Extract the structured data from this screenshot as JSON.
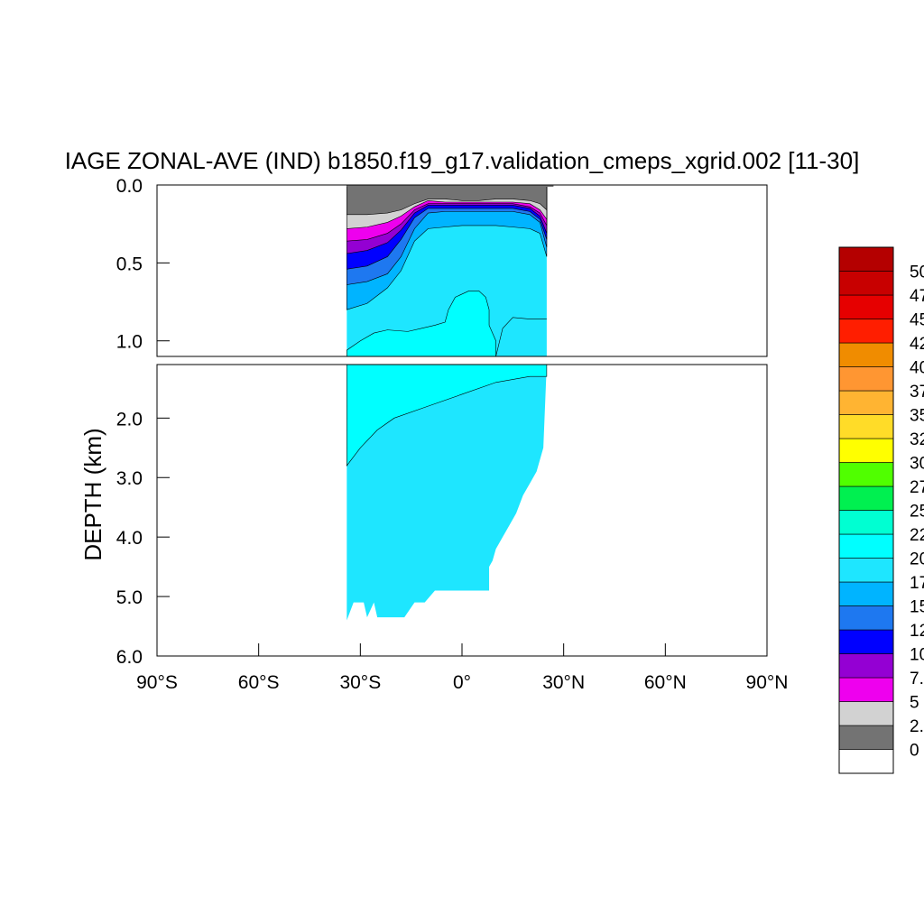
{
  "chart_data": {
    "type": "heatmap",
    "title": "IAGE ZONAL-AVE (IND) b1850.f19_g17.validation_cmeps_xgrid.002 [11-30]",
    "ylabel": "DEPTH (km)",
    "xlabel": "",
    "x_range": [
      -90,
      90
    ],
    "y_range_top_panel": [
      0.0,
      1.1
    ],
    "y_range_bottom_panel": [
      1.1,
      6.0
    ],
    "y_reversed": true,
    "x_ticks": [
      {
        "value": -90,
        "label": "90°S"
      },
      {
        "value": -60,
        "label": "60°S"
      },
      {
        "value": -30,
        "label": "30°S"
      },
      {
        "value": 0,
        "label": "0°"
      },
      {
        "value": 30,
        "label": "30°N"
      },
      {
        "value": 60,
        "label": "60°N"
      },
      {
        "value": 90,
        "label": "90°N"
      }
    ],
    "y_ticks_top": [
      {
        "value": 0.0,
        "label": "0.0"
      },
      {
        "value": 0.5,
        "label": "0.5"
      },
      {
        "value": 1.0,
        "label": "1.0"
      }
    ],
    "y_ticks_bottom": [
      {
        "value": 2.0,
        "label": "2.0"
      },
      {
        "value": 3.0,
        "label": "3.0"
      },
      {
        "value": 4.0,
        "label": "4.0"
      },
      {
        "value": 5.0,
        "label": "5.0"
      },
      {
        "value": 6.0,
        "label": "6.0"
      }
    ],
    "data_lat_range": [
      -34,
      25
    ],
    "colorbar": {
      "labels": [
        "0",
        "2.",
        "5",
        "7.",
        "10",
        "12",
        "15",
        "17",
        "20",
        "22",
        "25",
        "27",
        "30",
        "32",
        "35",
        "37",
        "40",
        "42",
        "45",
        "47",
        "50"
      ],
      "colors": [
        "#ffffff",
        "#737373",
        "#d2d2d2",
        "#ee00ee",
        "#9400d3",
        "#0000ff",
        "#1e78f0",
        "#00b4ff",
        "#1ee6ff",
        "#00ffff",
        "#00ffd2",
        "#00f050",
        "#50ff00",
        "#ffff00",
        "#ffdc28",
        "#ffb432",
        "#ff9632",
        "#f08c00",
        "#ff1e00",
        "#e60000",
        "#c80000",
        "#b40000"
      ]
    }
  }
}
